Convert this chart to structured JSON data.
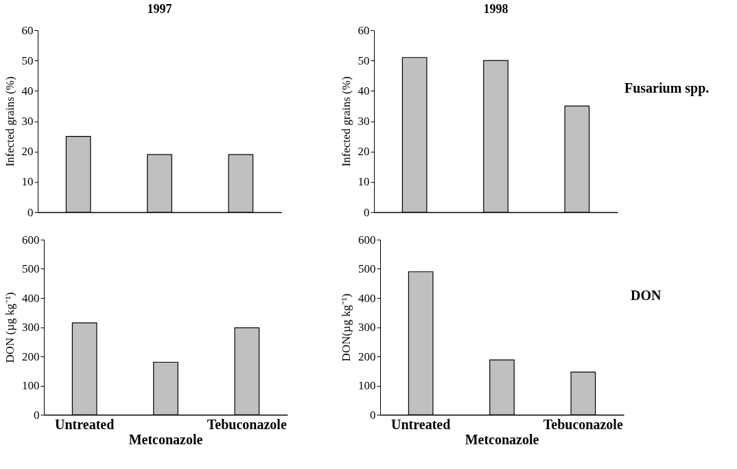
{
  "chart_data": [
    {
      "type": "bar",
      "title": "1997",
      "ylabel": "Infected grains (%)",
      "categories": [
        null,
        null,
        null
      ],
      "values": [
        25,
        19,
        19
      ],
      "color": "#c0c0c0",
      "ylim": [
        0,
        60
      ],
      "yticks": [
        0,
        10,
        20,
        30,
        40,
        50,
        60
      ]
    },
    {
      "type": "bar",
      "title": "1998",
      "ylabel": "Infected grains (%)",
      "categories": [
        null,
        null,
        null
      ],
      "values": [
        51,
        50,
        35
      ],
      "color": "#c0c0c0",
      "ylim": [
        0,
        60
      ],
      "yticks": [
        0,
        10,
        20,
        30,
        40,
        50,
        60
      ],
      "annotations": [
        "Fusarium spp."
      ]
    },
    {
      "type": "bar",
      "ylabel": "DON (µg kg⁻¹)",
      "categories": [
        "Untreated",
        "Metconazole",
        "Tebuconazole"
      ],
      "values": [
        315,
        180,
        298
      ],
      "color": "#c0c0c0",
      "ylim": [
        0,
        600
      ],
      "yticks": [
        0,
        100,
        200,
        300,
        400,
        500,
        600
      ]
    },
    {
      "type": "bar",
      "ylabel": "DON(µg kg⁻¹)",
      "categories": [
        "Untreated",
        "Metconazole",
        "Tebuconazole"
      ],
      "values": [
        490,
        188,
        146
      ],
      "color": "#c0c0c0",
      "ylim": [
        0,
        600
      ],
      "yticks": [
        0,
        100,
        200,
        300,
        400,
        500,
        600
      ],
      "annotations": [
        "DON"
      ]
    }
  ]
}
